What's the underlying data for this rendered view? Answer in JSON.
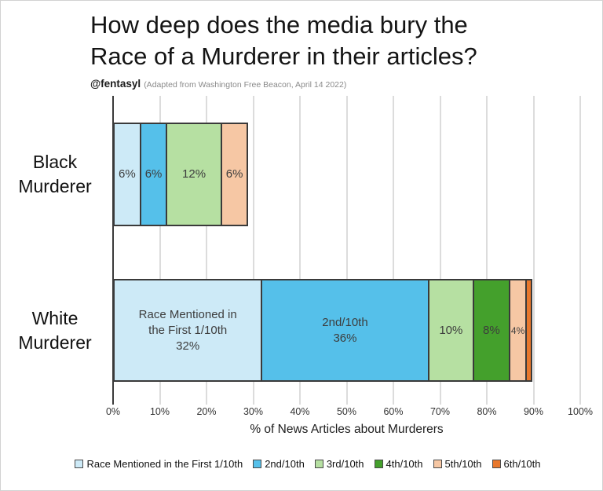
{
  "header": {
    "title_line1": "How deep does the media bury the",
    "title_line2": "Race of a Murderer in their articles?",
    "byline": "@fentasyl",
    "source_note": "(Adapted from Washington Free Beacon, April 14 2022)"
  },
  "chart_data": {
    "type": "bar",
    "orientation": "horizontal",
    "stacked": true,
    "title": "How deep does the media bury the Race of a Murderer in their articles?",
    "categories": [
      "Black Murderer",
      "White Murderer"
    ],
    "category_label_lines": [
      [
        "Black",
        "Murderer"
      ],
      [
        "White",
        "Murderer"
      ]
    ],
    "series": [
      {
        "name": "Race Mentioned in the First 1/10th",
        "color": "#cdeaf7",
        "values": [
          6,
          32
        ]
      },
      {
        "name": "2nd/10th",
        "color": "#55c0ea",
        "values": [
          6,
          36
        ]
      },
      {
        "name": "3rd/10th",
        "color": "#b6e0a2",
        "values": [
          12,
          10
        ]
      },
      {
        "name": "4th/10th",
        "color": "#44a02c",
        "values": [
          0,
          8
        ]
      },
      {
        "name": "5th/10th",
        "color": "#f6c7a4",
        "values": [
          6,
          4
        ]
      },
      {
        "name": "6th/10th",
        "color": "#e8772c",
        "values": [
          0,
          1.5
        ]
      }
    ],
    "segment_labels": [
      [
        [
          "6%"
        ],
        [
          "6%"
        ],
        [
          "12%"
        ],
        null,
        [
          "6%"
        ],
        null
      ],
      [
        [
          "Race Mentioned in",
          "the First 1/10th",
          "32%"
        ],
        [
          "2nd/10th",
          "36%"
        ],
        [
          "10%"
        ],
        [
          "8%"
        ],
        [
          "4%"
        ],
        null
      ]
    ],
    "xlabel": "% of News Articles about Murderers",
    "xlim": [
      0,
      100
    ],
    "xtick_values": [
      0,
      10,
      20,
      30,
      40,
      50,
      60,
      70,
      80,
      90,
      100
    ],
    "xtick_labels": [
      "0%",
      "10%",
      "20%",
      "30%",
      "40%",
      "50%",
      "60%",
      "70%",
      "80%",
      "90%",
      "100%"
    ],
    "grid": true,
    "legend_position": "bottom"
  }
}
